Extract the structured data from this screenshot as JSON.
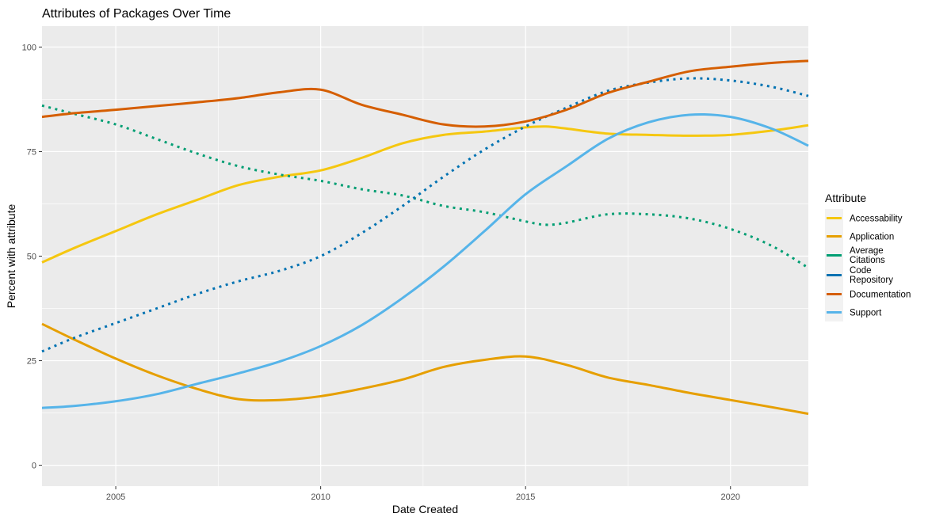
{
  "chart_data": {
    "type": "line",
    "title": "Attributes of Packages Over Time",
    "xlabel": "Date Created",
    "ylabel": "Percent with attribute",
    "xlim": [
      2003.2,
      2021.9
    ],
    "ylim": [
      -5,
      105
    ],
    "x_ticks": [
      2005,
      2010,
      2015,
      2020
    ],
    "y_ticks": [
      0,
      25,
      50,
      75,
      100
    ],
    "grid": true,
    "legend": {
      "title": "Attribute",
      "placement": "right"
    },
    "series": [
      {
        "name": "Accessability",
        "color": "#F5C710",
        "dash": "solid",
        "legend_lines": [
          "Accessability"
        ],
        "x": [
          2003.2,
          2004,
          2005,
          2006,
          2007,
          2008,
          2009,
          2010,
          2011,
          2012,
          2013,
          2014,
          2015,
          2015.5,
          2016,
          2017,
          2018,
          2019,
          2020,
          2021,
          2021.9
        ],
        "y": [
          48.5,
          52,
          56,
          60,
          63.5,
          67,
          69,
          70.5,
          73.5,
          77,
          79,
          79.8,
          80.8,
          81,
          80.5,
          79.3,
          79,
          78.8,
          79,
          80,
          81.3
        ]
      },
      {
        "name": "Application",
        "color": "#E69F00",
        "dash": "solid",
        "legend_lines": [
          "Application"
        ],
        "x": [
          2003.2,
          2004,
          2005,
          2006,
          2007,
          2008,
          2009,
          2010,
          2011,
          2012,
          2013,
          2014,
          2015,
          2016,
          2017,
          2018,
          2019,
          2020,
          2021,
          2021.9
        ],
        "y": [
          33.8,
          30,
          25.5,
          21.5,
          18.2,
          15.8,
          15.6,
          16.5,
          18.3,
          20.5,
          23.5,
          25.2,
          26,
          24,
          21,
          19.2,
          17.3,
          15.6,
          13.9,
          12.3
        ]
      },
      {
        "name": "Average Citations",
        "color": "#009E73",
        "dash": "dotted",
        "legend_lines": [
          "Average",
          "Citations"
        ],
        "x": [
          2003.2,
          2004,
          2005,
          2006,
          2007,
          2008,
          2009,
          2010,
          2011,
          2012,
          2013,
          2014,
          2015,
          2015.5,
          2016,
          2017,
          2018,
          2019,
          2020,
          2021,
          2021.9
        ],
        "y": [
          86,
          84,
          81.5,
          78,
          74.5,
          71.5,
          69.5,
          68,
          66,
          64.5,
          62,
          60.5,
          58.3,
          57.5,
          58,
          60,
          60,
          59,
          56.5,
          52.5,
          47.2
        ]
      },
      {
        "name": "Code Repository",
        "color": "#0072B2",
        "dash": "dotted",
        "legend_lines": [
          "Code",
          "Repository"
        ],
        "x": [
          2003.2,
          2004,
          2005,
          2006,
          2007,
          2008,
          2009,
          2010,
          2011,
          2012,
          2013,
          2014,
          2015,
          2016,
          2017,
          2018,
          2019,
          2020,
          2021,
          2021.9
        ],
        "y": [
          27.2,
          30.5,
          34,
          37.5,
          41,
          44,
          46.5,
          50,
          55.5,
          62,
          69,
          75.5,
          81,
          85.5,
          89.5,
          91.5,
          92.5,
          92,
          90.5,
          88.3
        ]
      },
      {
        "name": "Documentation",
        "color": "#D55E00",
        "dash": "solid",
        "legend_lines": [
          "Documentation"
        ],
        "x": [
          2003.2,
          2004,
          2005,
          2006,
          2007,
          2008,
          2009,
          2010,
          2011,
          2012,
          2013,
          2014,
          2015,
          2016,
          2017,
          2018,
          2019,
          2020,
          2021,
          2021.9
        ],
        "y": [
          83.3,
          84.2,
          85,
          85.9,
          86.8,
          87.8,
          89.2,
          89.8,
          86.2,
          83.8,
          81.5,
          81,
          82.2,
          85,
          89,
          91.7,
          94.2,
          95.3,
          96.2,
          96.7
        ]
      },
      {
        "name": "Support",
        "color": "#56B4E9",
        "dash": "solid",
        "legend_lines": [
          "Support"
        ],
        "x": [
          2003.2,
          2004,
          2005,
          2006,
          2007,
          2008,
          2009,
          2010,
          2011,
          2012,
          2013,
          2014,
          2015,
          2016,
          2017,
          2018,
          2019,
          2020,
          2021,
          2021.9
        ],
        "y": [
          13.7,
          14.2,
          15.3,
          17,
          19.5,
          22,
          24.8,
          28.5,
          33.5,
          40,
          47.5,
          56,
          64.8,
          71.5,
          78,
          82,
          83.8,
          83.3,
          80.5,
          76.4
        ]
      }
    ]
  }
}
